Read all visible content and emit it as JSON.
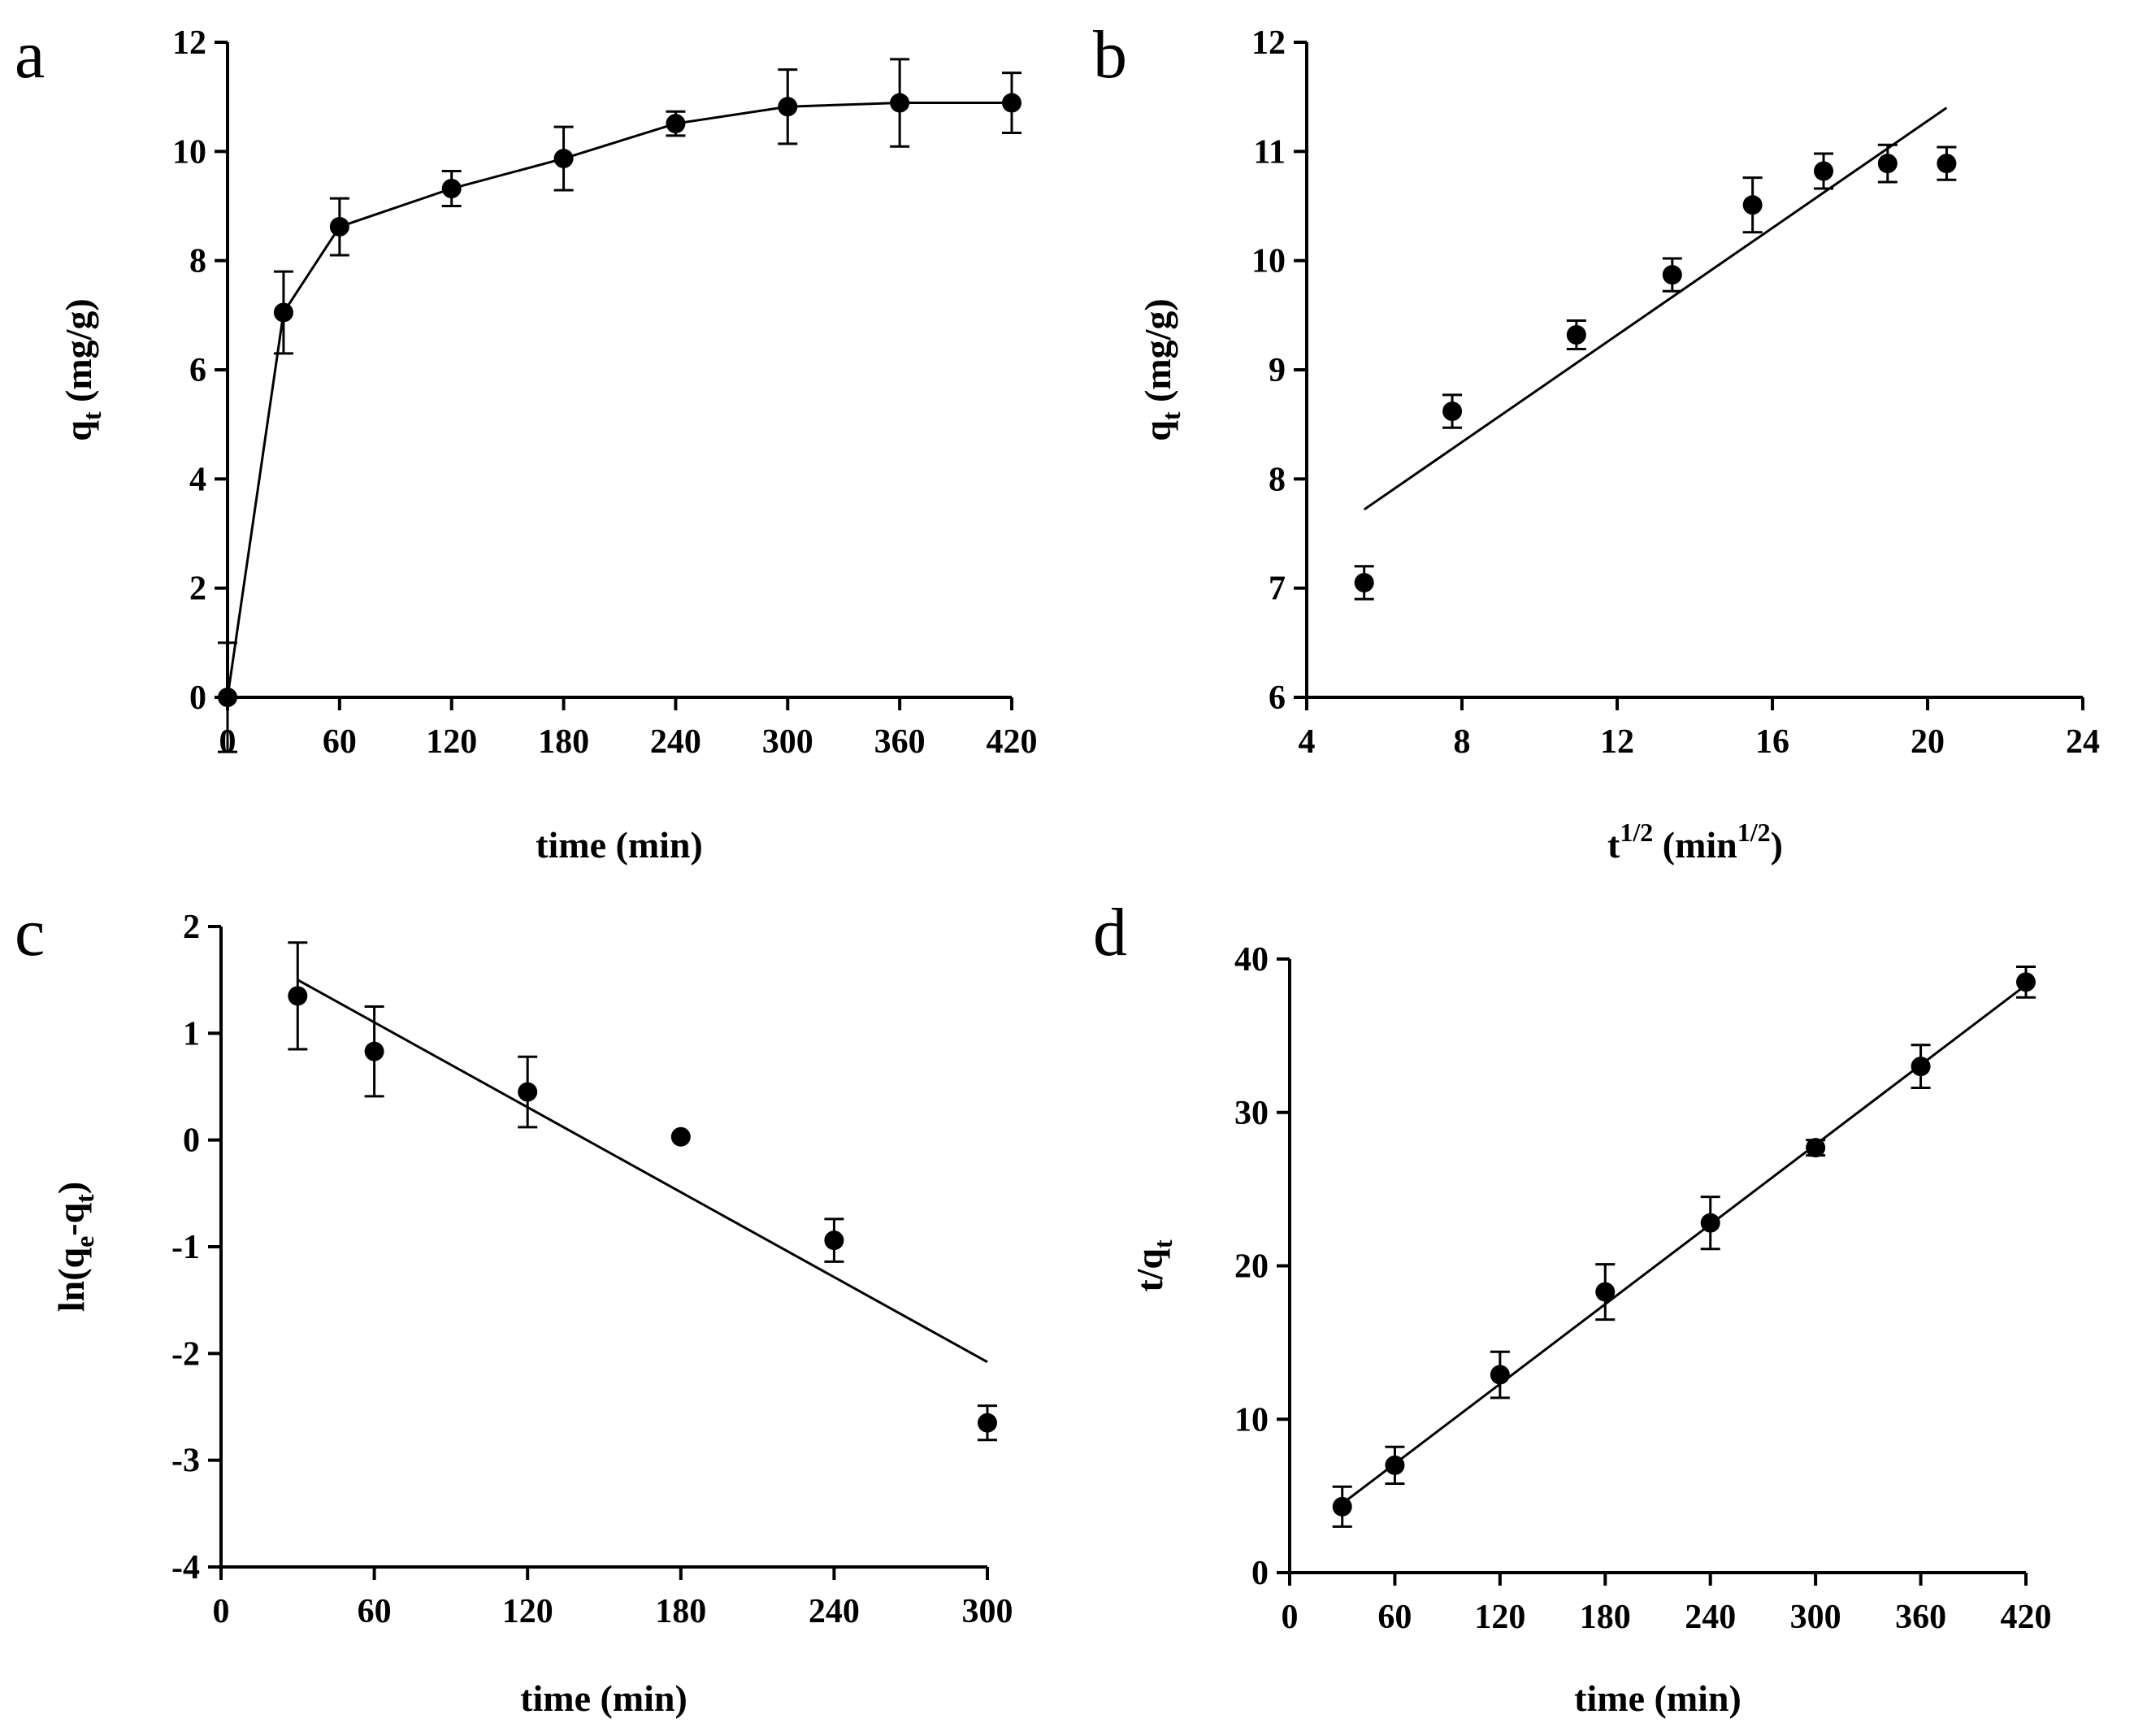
{
  "chart_data": [
    {
      "id": "a",
      "panel_label": "a",
      "type": "line",
      "xlabel": "time (min)",
      "ylabel": {
        "base": "q",
        "sub": "t",
        "rest": " (mg/g)"
      },
      "xlim": [
        0,
        420
      ],
      "ylim": [
        0,
        12
      ],
      "xticks": [
        0,
        60,
        120,
        180,
        240,
        300,
        360,
        420
      ],
      "yticks": [
        0,
        2,
        4,
        6,
        8,
        10,
        12
      ],
      "x": [
        0,
        30,
        60,
        120,
        180,
        240,
        300,
        360,
        420
      ],
      "y": [
        0,
        7.05,
        8.62,
        9.32,
        9.87,
        10.51,
        10.82,
        10.89,
        10.89
      ],
      "err": [
        1.0,
        0.75,
        0.52,
        0.32,
        0.58,
        0.22,
        0.68,
        0.8,
        0.55
      ],
      "connect_points": true,
      "fit_line": null
    },
    {
      "id": "b",
      "panel_label": "b",
      "type": "scatter",
      "xlabel": {
        "base": "t",
        "sup": "1/2",
        "mid": " (min",
        "sup2": "1/2",
        "end": ")"
      },
      "ylabel": {
        "base": "q",
        "sub": "t",
        "rest": " (mg/g)"
      },
      "xlim": [
        4,
        24
      ],
      "ylim": [
        6,
        12
      ],
      "xticks": [
        4,
        8,
        12,
        16,
        20,
        24
      ],
      "yticks": [
        6,
        7,
        8,
        9,
        10,
        11,
        12
      ],
      "x": [
        5.48,
        7.75,
        10.95,
        13.42,
        15.49,
        17.32,
        18.97,
        20.49
      ],
      "y": [
        7.05,
        8.62,
        9.32,
        9.87,
        10.51,
        10.82,
        10.89,
        10.89
      ],
      "err": [
        0.15,
        0.15,
        0.13,
        0.15,
        0.25,
        0.16,
        0.17,
        0.15
      ],
      "connect_points": false,
      "fit_line": {
        "x": [
          5.48,
          20.49
        ],
        "y": [
          7.72,
          11.4
        ]
      }
    },
    {
      "id": "c",
      "panel_label": "c",
      "type": "scatter",
      "xlabel": "time (min)",
      "ylabel": {
        "pre": "ln(q",
        "sub": "e",
        "mid": "-q",
        "sub2": "t",
        "end": ")"
      },
      "xlim": [
        0,
        300
      ],
      "ylim": [
        -4,
        2
      ],
      "xticks": [
        0,
        60,
        120,
        180,
        240,
        300
      ],
      "yticks": [
        -4,
        -3,
        -2,
        -1,
        0,
        1,
        2
      ],
      "x": [
        30,
        60,
        120,
        180,
        240,
        300
      ],
      "y": [
        1.35,
        0.83,
        0.45,
        0.03,
        -0.94,
        -2.65
      ],
      "err": [
        0.5,
        0.42,
        0.33,
        0,
        0.2,
        0.16
      ],
      "connect_points": false,
      "fit_line": {
        "x": [
          30,
          300
        ],
        "y": [
          1.5,
          -2.08
        ]
      }
    },
    {
      "id": "d",
      "panel_label": "d",
      "type": "scatter",
      "xlabel": "time (min)",
      "ylabel": {
        "pre": "t/q",
        "sub": "t"
      },
      "xlim": [
        0,
        420
      ],
      "ylim": [
        0,
        40
      ],
      "xticks": [
        0,
        60,
        120,
        180,
        240,
        300,
        360,
        420
      ],
      "yticks": [
        0,
        10,
        20,
        30,
        40
      ],
      "x": [
        30,
        60,
        120,
        180,
        240,
        300,
        360,
        420
      ],
      "y": [
        4.3,
        7.0,
        12.9,
        18.3,
        22.8,
        27.7,
        33.0,
        38.5
      ],
      "err": [
        1.3,
        1.2,
        1.5,
        1.8,
        1.7,
        0.5,
        1.4,
        1.0
      ],
      "connect_points": false,
      "fit_line": {
        "x": [
          30,
          420
        ],
        "y": [
          4.5,
          38.3
        ]
      }
    }
  ]
}
